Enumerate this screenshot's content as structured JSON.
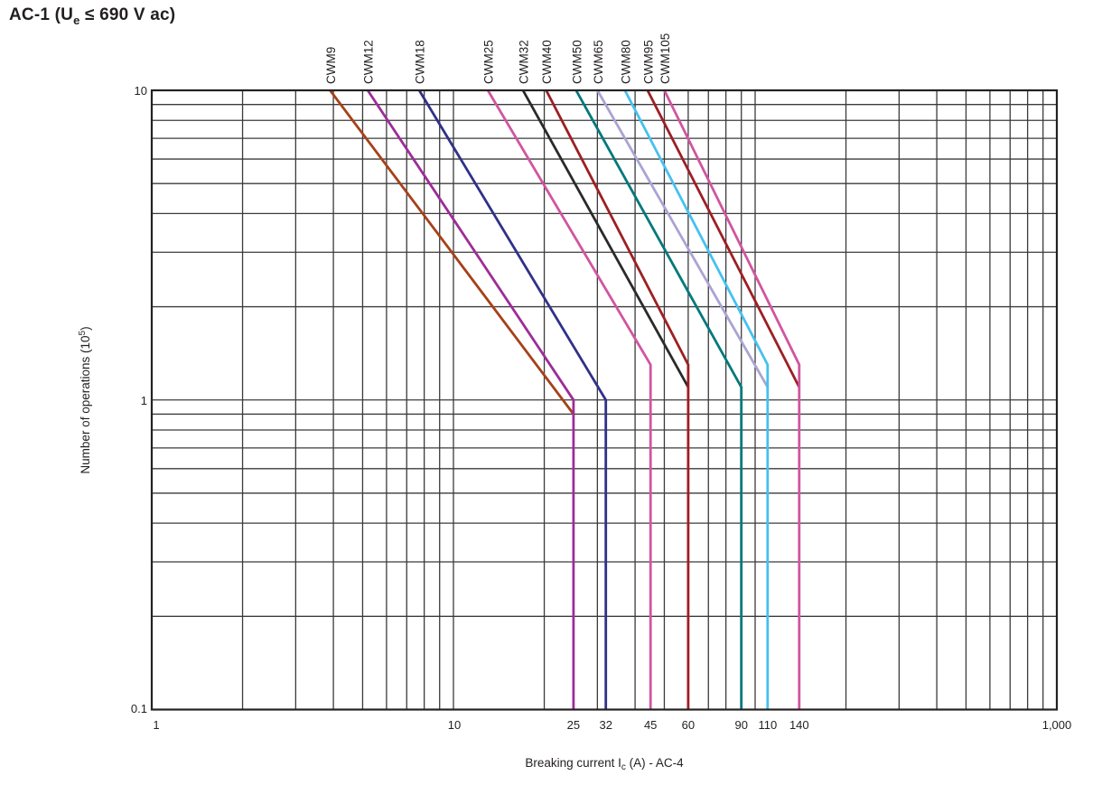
{
  "title": {
    "prefix": "AC-1 (U",
    "subscript": "e",
    "suffix": " ≤ 690 V ac)"
  },
  "colors": {
    "background": "#FFFFFF",
    "text": "#231F20",
    "grid": "#3B3B3D",
    "axis_border": "#242122"
  },
  "chart_data": {
    "type": "line",
    "title": "AC-1 (Ue ≤ 690 V ac)",
    "x_axis": {
      "label": "Breaking current Ic (A) - AC-4",
      "label_prefix": "Breaking current I",
      "label_subscript": "c",
      "label_suffix": " (A) - AC-4",
      "scale": "log",
      "range": [
        1,
        1000
      ],
      "tick_labels": [
        "1",
        "10",
        "1,000"
      ],
      "tick_values": [
        1,
        10,
        1000
      ],
      "rating_tick_labels": [
        "25",
        "32",
        "45",
        "60",
        "90",
        "110",
        "140"
      ],
      "rating_tick_values": [
        25,
        32,
        45,
        60,
        90,
        110,
        140
      ]
    },
    "y_axis": {
      "label": "Number of operations (10⁵)",
      "label_prefix": "Number of operations (10",
      "label_superscript": "5",
      "label_suffix": ")",
      "scale": "log",
      "range": [
        0.1,
        10
      ],
      "tick_labels": [
        "10",
        "1",
        "0.1"
      ],
      "tick_values": [
        10,
        1,
        0.1
      ]
    },
    "grid": {
      "visible": true,
      "style": "full log-log minor grid on both axes"
    },
    "legend_position": "labels rotated above top edge of each curve",
    "series": [
      {
        "name": "CWM9",
        "color": "#A64119",
        "points": [
          [
            3.9,
            10
          ],
          [
            25,
            0.9
          ]
        ]
      },
      {
        "name": "CWM12",
        "color": "#9D2D97",
        "points": [
          [
            5.2,
            10
          ],
          [
            25,
            1.0
          ],
          [
            25,
            0.1
          ]
        ]
      },
      {
        "name": "CWM18",
        "color": "#2F3189",
        "points": [
          [
            7.7,
            10
          ],
          [
            32,
            1.0
          ],
          [
            32,
            0.1
          ]
        ]
      },
      {
        "name": "CWM25",
        "color": "#D1559F",
        "points": [
          [
            13,
            10
          ],
          [
            45,
            1.3
          ],
          [
            45,
            0.1
          ]
        ]
      },
      {
        "name": "CWM32",
        "color": "#2B2A2B",
        "points": [
          [
            17,
            10
          ],
          [
            60,
            1.1
          ]
        ]
      },
      {
        "name": "CWM40",
        "color": "#9D1F23",
        "points": [
          [
            20.3,
            10
          ],
          [
            60,
            1.3
          ],
          [
            60,
            0.1
          ]
        ]
      },
      {
        "name": "CWM50",
        "color": "#00797B",
        "points": [
          [
            25.5,
            10
          ],
          [
            90,
            1.1
          ],
          [
            90,
            0.1
          ]
        ]
      },
      {
        "name": "CWM65",
        "color": "#A9A4D4",
        "points": [
          [
            30,
            10
          ],
          [
            110,
            1.1
          ]
        ]
      },
      {
        "name": "CWM80",
        "color": "#45C1F0",
        "points": [
          [
            37,
            10
          ],
          [
            110,
            1.3
          ],
          [
            110,
            0.1
          ]
        ]
      },
      {
        "name": "CWM95",
        "color": "#9D1F23",
        "points": [
          [
            44,
            10
          ],
          [
            140,
            1.1
          ]
        ]
      },
      {
        "name": "CWM105",
        "color": "#D1559F",
        "points": [
          [
            50,
            10
          ],
          [
            140,
            1.3
          ],
          [
            140,
            0.1
          ]
        ]
      }
    ]
  }
}
